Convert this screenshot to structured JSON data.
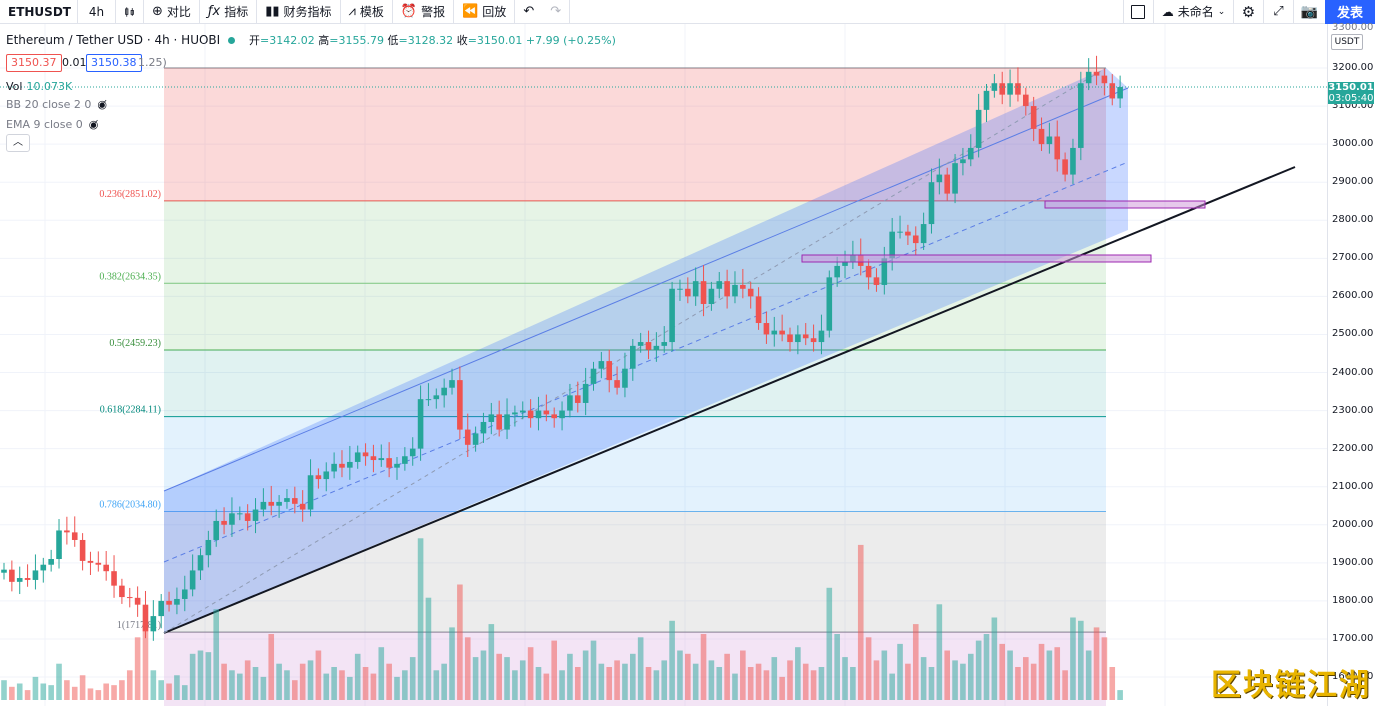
{
  "toolbar": {
    "symbol": "ETHUSDT",
    "interval": "4h",
    "compare": "对比",
    "indicators": "指标",
    "financials": "财务指标",
    "templates": "模板",
    "alert": "警报",
    "replay": "回放",
    "layout_name": "未命名",
    "publish": "发表"
  },
  "legend": {
    "title": "Ethereum / Tether USD · 4h · HUOBI",
    "open_label": "开",
    "open": "3142.02",
    "high_label": "高",
    "high": "3155.79",
    "low_label": "低",
    "low": "3128.32",
    "close_label": "收",
    "close": "3150.01",
    "change": "+7.99 (+0.25%)",
    "bid": "3150.37",
    "spread": "0.01",
    "ask": "3150.38",
    "spread_extra": "1.25)"
  },
  "indicators": {
    "vol_label": "Vol",
    "vol_value": "10.073K",
    "bb": "BB 20 close 2 0",
    "ema": "EMA 9 close 0"
  },
  "axis": {
    "currency": "USDT",
    "top_cut": "3300.00",
    "current_price": "3150.01",
    "countdown": "03:05:40",
    "ticks": [
      "3200.00",
      "3100.00",
      "3000.00",
      "2900.00",
      "2800.00",
      "2700.00",
      "2600.00",
      "2500.00",
      "2400.00",
      "2300.00",
      "2200.00",
      "2100.00",
      "2000.00",
      "1900.00",
      "1800.00",
      "1700.00",
      "1600.00"
    ]
  },
  "fib_labels": [
    "0.236(2851.02)",
    "0.382(2634.35)",
    "0.5(2459.23)",
    "0.618(2284.11)",
    "0.786(2034.80)",
    "1(1717.81)"
  ],
  "watermark": "区块链江湖",
  "colors": {
    "up": "#26a69a",
    "down": "#ef5350",
    "accent": "#2962ff"
  },
  "chart_data": {
    "type": "candlestick",
    "title": "Ethereum / Tether USD · 4h · HUOBI",
    "ylim": [
      1590,
      3300
    ],
    "y_ticks": [
      1600,
      1700,
      1800,
      1900,
      2000,
      2100,
      2200,
      2300,
      2400,
      2500,
      2600,
      2700,
      2800,
      2900,
      3000,
      3100,
      3200
    ],
    "fibonacci": [
      {
        "level": 0.236,
        "price": 2851.02
      },
      {
        "level": 0.382,
        "price": 2634.35
      },
      {
        "level": 0.5,
        "price": 2459.23
      },
      {
        "level": 0.618,
        "price": 2284.11
      },
      {
        "level": 0.786,
        "price": 2034.8
      },
      {
        "level": 1,
        "price": 1717.81
      }
    ],
    "closes": [
      1882,
      1850,
      1860,
      1855,
      1880,
      1895,
      1910,
      1985,
      1980,
      1960,
      1905,
      1900,
      1895,
      1878,
      1840,
      1810,
      1808,
      1790,
      1720,
      1760,
      1800,
      1790,
      1805,
      1830,
      1880,
      1920,
      1960,
      2010,
      2000,
      2030,
      2030,
      2010,
      2040,
      2060,
      2050,
      2060,
      2070,
      2055,
      2040,
      2130,
      2120,
      2140,
      2160,
      2150,
      2165,
      2190,
      2180,
      2170,
      2175,
      2150,
      2160,
      2180,
      2200,
      2330,
      2330,
      2340,
      2360,
      2380,
      2250,
      2210,
      2240,
      2270,
      2290,
      2250,
      2290,
      2295,
      2300,
      2280,
      2300,
      2290,
      2280,
      2300,
      2340,
      2320,
      2370,
      2410,
      2430,
      2380,
      2360,
      2410,
      2470,
      2480,
      2460,
      2470,
      2480,
      2620,
      2620,
      2600,
      2640,
      2580,
      2620,
      2640,
      2600,
      2630,
      2620,
      2600,
      2530,
      2500,
      2510,
      2500,
      2480,
      2500,
      2490,
      2480,
      2510,
      2650,
      2680,
      2690,
      2710,
      2680,
      2650,
      2630,
      2700,
      2770,
      2770,
      2760,
      2740,
      2790,
      2900,
      2920,
      2870,
      2950,
      2960,
      2990,
      3090,
      3140,
      3160,
      3130,
      3160,
      3130,
      3100,
      3040,
      3000,
      3020,
      2960,
      2920,
      2990,
      3160,
      3190,
      3180,
      3160,
      3120,
      3150
    ],
    "volumes": [
      0.12,
      0.08,
      0.1,
      0.06,
      0.14,
      0.1,
      0.09,
      0.22,
      0.12,
      0.08,
      0.15,
      0.07,
      0.06,
      0.1,
      0.09,
      0.12,
      0.18,
      0.38,
      0.45,
      0.18,
      0.12,
      0.1,
      0.15,
      0.09,
      0.28,
      0.3,
      0.29,
      0.55,
      0.22,
      0.18,
      0.16,
      0.24,
      0.2,
      0.14,
      0.4,
      0.22,
      0.18,
      0.12,
      0.22,
      0.24,
      0.3,
      0.16,
      0.2,
      0.18,
      0.14,
      0.28,
      0.2,
      0.16,
      0.32,
      0.22,
      0.14,
      0.18,
      0.26,
      0.98,
      0.62,
      0.18,
      0.22,
      0.44,
      0.7,
      0.38,
      0.26,
      0.3,
      0.46,
      0.28,
      0.26,
      0.18,
      0.24,
      0.32,
      0.2,
      0.16,
      0.36,
      0.18,
      0.28,
      0.2,
      0.3,
      0.36,
      0.22,
      0.2,
      0.24,
      0.22,
      0.28,
      0.38,
      0.2,
      0.18,
      0.24,
      0.48,
      0.3,
      0.28,
      0.22,
      0.4,
      0.24,
      0.2,
      0.28,
      0.16,
      0.3,
      0.2,
      0.22,
      0.18,
      0.26,
      0.14,
      0.24,
      0.32,
      0.22,
      0.18,
      0.2,
      0.68,
      0.4,
      0.26,
      0.2,
      0.94,
      0.38,
      0.24,
      0.3,
      0.16,
      0.34,
      0.22,
      0.46,
      0.26,
      0.2,
      0.58,
      0.3,
      0.24,
      0.22,
      0.28,
      0.36,
      0.4,
      0.5,
      0.34,
      0.3,
      0.2,
      0.26,
      0.22,
      0.34,
      0.3,
      0.32,
      0.18,
      0.5,
      0.48,
      0.3,
      0.44,
      0.38,
      0.2,
      0.06
    ]
  }
}
